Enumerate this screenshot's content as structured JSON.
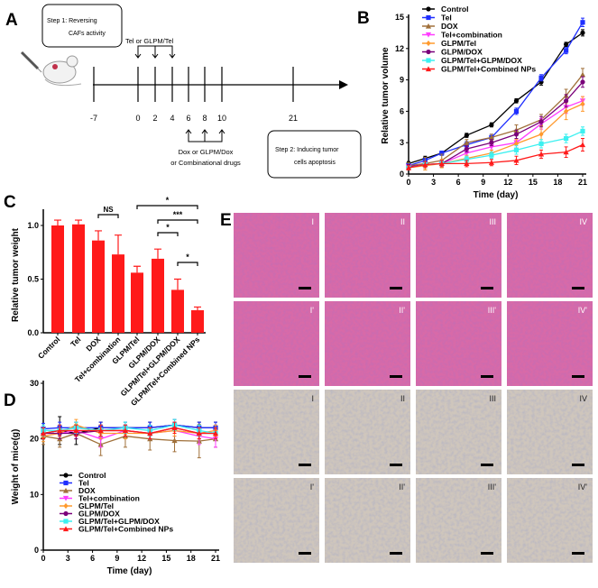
{
  "panel_labels": {
    "a": "A",
    "b": "B",
    "c": "C",
    "d": "D",
    "e": "E"
  },
  "panel_a": {
    "step1_line1": "Step 1: Reversing",
    "step1_line2": "CAFs activity",
    "tel_label": "Tel or GLPM/Tel",
    "dox_line1": "Dox or GLPM/Dox",
    "dox_line2": "or Combinational drugs",
    "step2_line1": "Step 2: Inducing tumor",
    "step2_line2": "cells apoptosis",
    "timeline_days": [
      "-7",
      "0",
      "2",
      "4",
      "6",
      "8",
      "10",
      "21"
    ]
  },
  "series_style": [
    {
      "name": "Control",
      "color": "#000000",
      "marker": "circle"
    },
    {
      "name": "Tel",
      "color": "#1f2fff",
      "marker": "square"
    },
    {
      "name": "DOX",
      "color": "#a0703a",
      "marker": "triangle"
    },
    {
      "name": "Tel+combination",
      "color": "#ff3cff",
      "marker": "tri-down"
    },
    {
      "name": "GLPM/Tel",
      "color": "#ff9a2e",
      "marker": "diamond"
    },
    {
      "name": "GLPM/DOX",
      "color": "#7a007a",
      "marker": "circle"
    },
    {
      "name": "GLPM/Tel+GLPM/DOX",
      "color": "#3cf0f0",
      "marker": "square"
    },
    {
      "name": "GLPM/Tel+Combined NPs",
      "color": "#ff1a1a",
      "marker": "triangle"
    }
  ],
  "chart_data": [
    {
      "id": "B",
      "type": "line",
      "xlabel": "Time (day)",
      "ylabel": "Relative tumor volume",
      "xlim": [
        0,
        21
      ],
      "ylim": [
        0,
        15
      ],
      "xticks": [
        "0",
        "3",
        "6",
        "9",
        "12",
        "15",
        "18",
        "21"
      ],
      "yticks": [
        "0",
        "3",
        "6",
        "9",
        "12",
        "15"
      ],
      "legend": "top-left",
      "x": [
        0,
        2,
        4,
        7,
        10,
        13,
        16,
        19,
        21
      ],
      "series": [
        {
          "name": "Control",
          "values": [
            1.0,
            1.5,
            2.0,
            3.7,
            4.7,
            7.0,
            8.8,
            12.4,
            13.5
          ],
          "err": [
            0.2,
            0.2,
            0.2,
            0.2,
            0.2,
            0.2,
            0.3,
            0.2,
            0.3
          ]
        },
        {
          "name": "Tel",
          "values": [
            0.8,
            1.3,
            2.0,
            2.8,
            3.5,
            6.0,
            9.2,
            11.8,
            14.5
          ],
          "err": [
            0.2,
            0.2,
            0.2,
            0.3,
            0.3,
            0.3,
            0.3,
            0.3,
            0.4
          ]
        },
        {
          "name": "DOX",
          "values": [
            0.8,
            1.0,
            1.3,
            3.0,
            3.5,
            4.2,
            5.2,
            7.5,
            9.5
          ],
          "err": [
            0.3,
            0.6,
            0.6,
            0.3,
            0.3,
            0.5,
            0.5,
            0.6,
            0.6
          ]
        },
        {
          "name": "Tel+combination",
          "values": [
            0.7,
            0.9,
            1.0,
            2.0,
            2.6,
            3.0,
            4.8,
            6.4,
            7.0
          ],
          "err": [
            0.2,
            0.3,
            0.3,
            0.3,
            0.3,
            0.3,
            0.5,
            0.6,
            0.4
          ]
        },
        {
          "name": "GLPM/Tel",
          "values": [
            0.6,
            0.8,
            1.0,
            1.5,
            2.0,
            2.9,
            3.8,
            6.0,
            6.7
          ],
          "err": [
            0.2,
            0.4,
            0.4,
            0.3,
            0.3,
            0.4,
            0.8,
            0.8,
            0.7
          ]
        },
        {
          "name": "GLPM/DOX",
          "values": [
            0.7,
            0.9,
            1.0,
            2.4,
            3.0,
            3.8,
            5.0,
            7.0,
            8.8
          ],
          "err": [
            0.2,
            0.3,
            0.3,
            0.3,
            0.3,
            0.4,
            0.5,
            0.6,
            0.5
          ]
        },
        {
          "name": "GLPM/Tel+GLPM/DOX",
          "values": [
            0.6,
            0.9,
            1.0,
            1.4,
            1.8,
            2.3,
            2.9,
            3.4,
            4.1
          ],
          "err": [
            0.2,
            0.3,
            0.3,
            0.3,
            0.3,
            0.4,
            0.4,
            0.4,
            0.4
          ]
        },
        {
          "name": "GLPM/Tel+Combined NPs",
          "values": [
            0.6,
            0.9,
            1.0,
            1.0,
            1.1,
            1.3,
            1.9,
            2.1,
            2.8
          ],
          "err": [
            0.2,
            0.3,
            0.3,
            0.3,
            0.3,
            0.4,
            0.4,
            0.5,
            0.6
          ]
        }
      ]
    },
    {
      "id": "C",
      "type": "bar",
      "xlabel": "",
      "ylabel": "Relative tumor weight",
      "ylim": [
        0,
        1.15
      ],
      "yticks": [
        "0.0",
        "0.5",
        "1.0"
      ],
      "color": "#ff1a1a",
      "categories": [
        "Control",
        "Tel",
        "DOX",
        "Tel+combination",
        "GLPM/Tel",
        "GLPM/DOX",
        "GLPM/Tel+GLPM/DOX",
        "GLPM/Tel+Combined NPs"
      ],
      "values": [
        1.0,
        1.01,
        0.86,
        0.73,
        0.56,
        0.69,
        0.4,
        0.21
      ],
      "err": [
        0.05,
        0.04,
        0.09,
        0.18,
        0.06,
        0.09,
        0.1,
        0.03
      ],
      "significance": [
        {
          "from": 2,
          "to": 3,
          "label": "NS"
        },
        {
          "from": 4,
          "to": 7,
          "label": "*"
        },
        {
          "from": 5,
          "to": 7,
          "label": "***"
        },
        {
          "from": 5,
          "to": 6,
          "label": "*"
        },
        {
          "from": 6,
          "to": 7,
          "label": "*"
        }
      ]
    },
    {
      "id": "D",
      "type": "line",
      "xlabel": "Time (day)",
      "ylabel": "Weight of mice(g)",
      "xlim": [
        0,
        21
      ],
      "ylim": [
        0,
        30
      ],
      "xticks": [
        "0",
        "3",
        "6",
        "9",
        "12",
        "15",
        "18",
        "21"
      ],
      "yticks": [
        "0",
        "10",
        "20",
        "30"
      ],
      "legend": "center-left",
      "x": [
        0,
        2,
        4,
        7,
        10,
        13,
        16,
        19,
        21
      ],
      "series": [
        {
          "name": "Control",
          "values": [
            21,
            21.5,
            21,
            22,
            22,
            22,
            22.5,
            22,
            22
          ],
          "err": [
            1,
            2.5,
            2,
            1,
            1,
            1,
            1,
            1,
            1
          ]
        },
        {
          "name": "Tel",
          "values": [
            21.8,
            22,
            22,
            22,
            22,
            22,
            22.5,
            22,
            22
          ],
          "err": [
            1,
            1,
            1,
            1,
            1,
            1,
            1,
            1,
            1
          ]
        },
        {
          "name": "DOX",
          "values": [
            20.5,
            20,
            21,
            19,
            20.5,
            20,
            19.7,
            19.6,
            20
          ],
          "err": [
            1.5,
            1.5,
            1,
            2,
            2,
            2,
            2,
            3,
            1.5
          ]
        },
        {
          "name": "Tel+combination",
          "values": [
            21,
            21,
            21.5,
            20,
            21.5,
            21,
            21.5,
            20.5,
            20
          ],
          "err": [
            1,
            1,
            1,
            1.5,
            1,
            1,
            1,
            1.5,
            1.5
          ]
        },
        {
          "name": "GLPM/Tel",
          "values": [
            20.5,
            21,
            22.5,
            21,
            21,
            21,
            21.5,
            21,
            21.5
          ],
          "err": [
            1,
            1,
            1,
            1,
            1,
            1,
            1,
            1,
            1
          ]
        },
        {
          "name": "GLPM/DOX",
          "values": [
            21,
            21,
            21,
            21.5,
            21.5,
            21,
            22,
            21,
            21
          ],
          "err": [
            1,
            1,
            1,
            1,
            1,
            1,
            1,
            1,
            1
          ]
        },
        {
          "name": "GLPM/Tel+GLPM/DOX",
          "values": [
            21.5,
            21.5,
            22,
            21.5,
            22,
            21.5,
            22.5,
            21.5,
            21
          ],
          "err": [
            1,
            1,
            1,
            1,
            1,
            1,
            1,
            1,
            1
          ]
        },
        {
          "name": "GLPM/Tel+Combined NPs",
          "values": [
            21,
            21.5,
            21.5,
            21.5,
            21.5,
            21,
            22,
            21,
            21
          ],
          "err": [
            1,
            1,
            1,
            1,
            1,
            1,
            1,
            1,
            1
          ]
        }
      ]
    }
  ],
  "panel_e": {
    "rows": [
      {
        "stain": "he",
        "labels": [
          "I",
          "II",
          "III",
          "IV"
        ]
      },
      {
        "stain": "he",
        "labels": [
          "I'",
          "II'",
          "III'",
          "IV'"
        ]
      },
      {
        "stain": "ihc",
        "labels": [
          "I",
          "II",
          "III",
          "IV"
        ]
      },
      {
        "stain": "ihc",
        "labels": [
          "I'",
          "II'",
          "III'",
          "IV'"
        ]
      }
    ]
  }
}
